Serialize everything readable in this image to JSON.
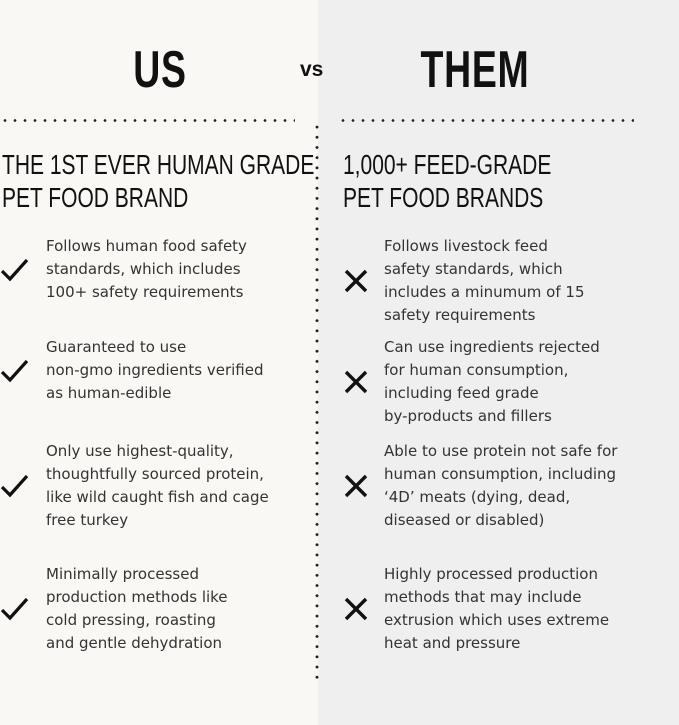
{
  "header": {
    "us": "US",
    "vs": "vs",
    "them": "THEM"
  },
  "us": {
    "subtitle_lines": [
      "THE 1ST EVER HUMAN GRADE",
      "PET FOOD BRAND"
    ],
    "icon": "check-icon",
    "items": [
      {
        "lines": [
          "Follows human food safety",
          "standards, which includes",
          "100+ safety requirements"
        ]
      },
      {
        "lines": [
          "Guaranteed to use",
          "non-gmo ingredients verified",
          "as human-edible"
        ]
      },
      {
        "lines": [
          "Only use highest-quality,",
          "thoughtfully sourced protein,",
          "like wild caught fish and cage",
          "free turkey"
        ]
      },
      {
        "lines": [
          "Minimally processed",
          "production methods like",
          "cold pressing, roasting",
          "and gentle dehydration"
        ]
      }
    ]
  },
  "them": {
    "subtitle_lines": [
      "1,000+ FEED-GRADE",
      "PET FOOD BRANDS"
    ],
    "icon": "x-icon",
    "items": [
      {
        "lines": [
          "Follows livestock feed",
          "safety standards, which",
          "includes a minumum of 15",
          "safety requirements"
        ]
      },
      {
        "lines": [
          "Can use ingredients rejected",
          "for human consumption,",
          "including feed grade",
          "by-products and fillers"
        ]
      },
      {
        "lines": [
          "Able to use protein not safe for",
          "human consumption, including",
          "‘4D’ meats (dying, dead,",
          "diseased or disabled)"
        ]
      },
      {
        "lines": [
          "Highly processed production",
          "methods that may include",
          "extrusion which uses extreme",
          "heat and pressure"
        ]
      }
    ]
  },
  "colors": {
    "left_bg": "#faf8f4",
    "right_bg": "#efefef",
    "text": "#222222"
  }
}
